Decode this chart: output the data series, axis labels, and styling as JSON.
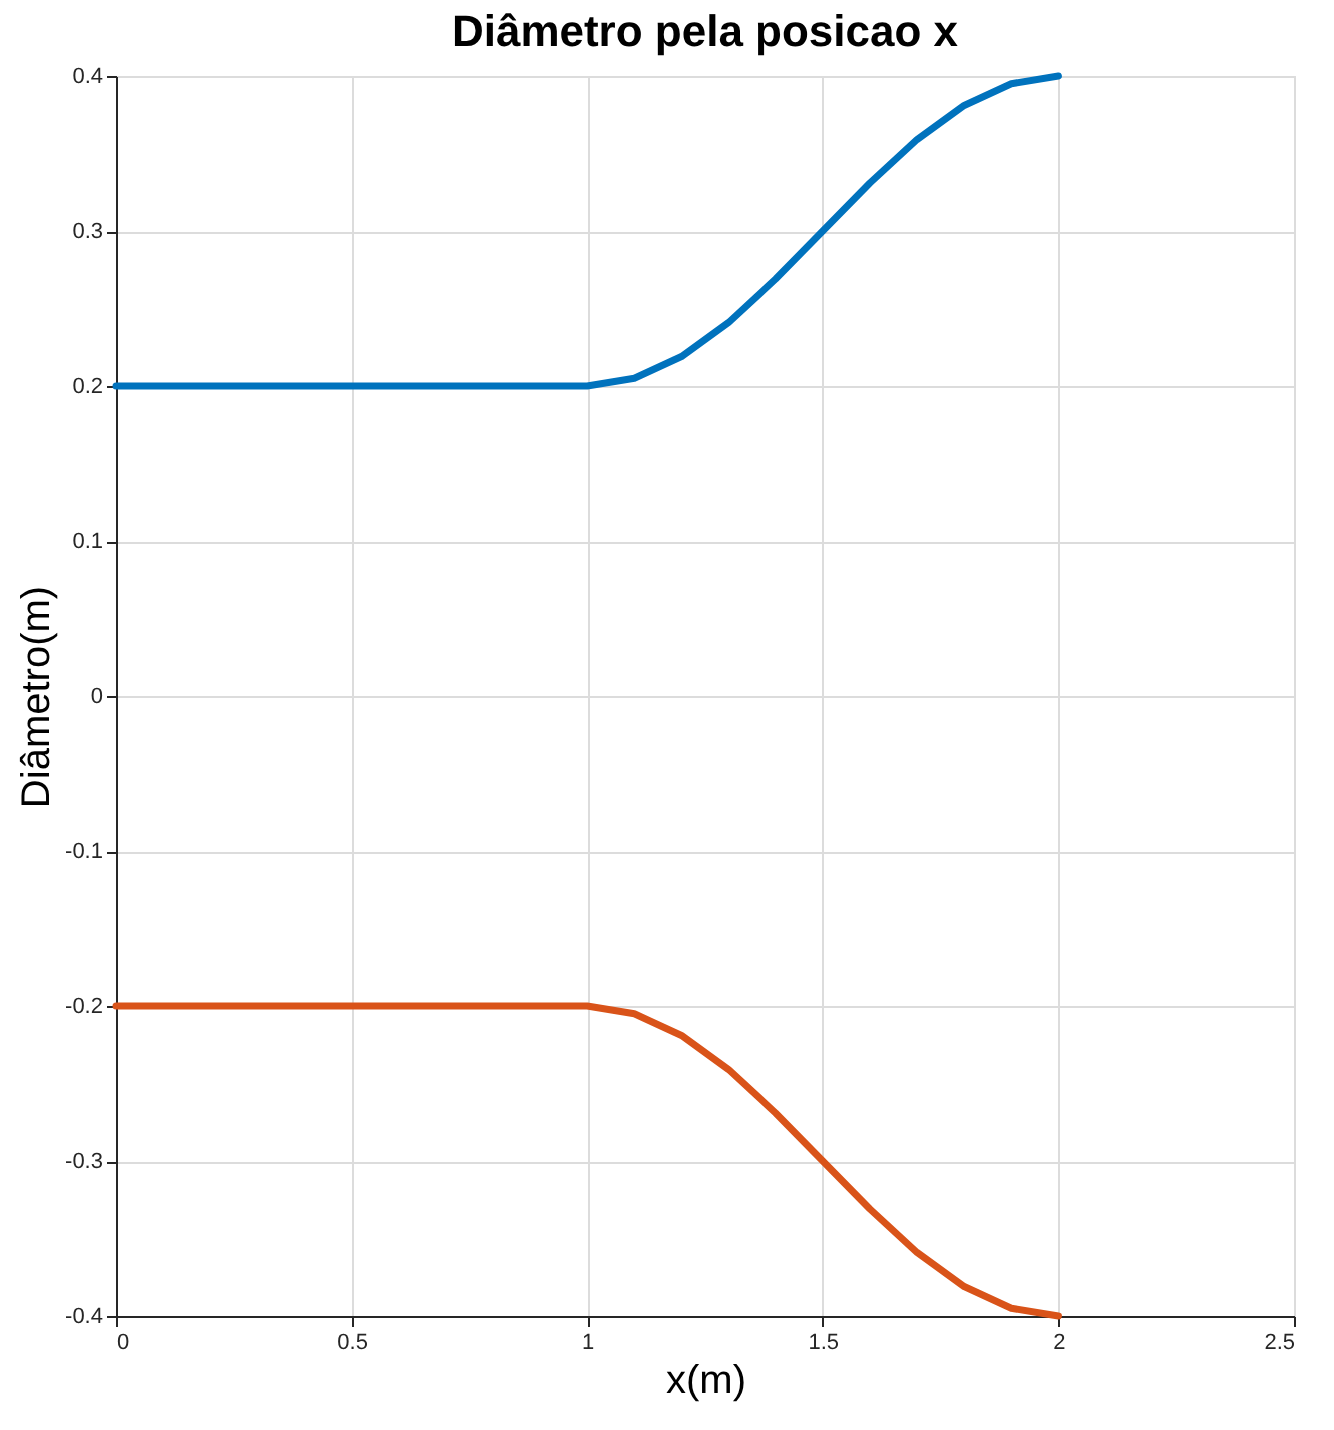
{
  "chart_data": {
    "type": "line",
    "title": "Diâmetro pela posicao x",
    "xlabel": "x(m)",
    "ylabel": "Diâmetro(m)",
    "x": [
      0,
      0.5,
      1,
      1.1,
      1.2,
      1.3,
      1.4,
      1.5,
      1.6,
      1.7,
      1.8,
      1.9,
      2
    ],
    "series": [
      {
        "color": "#0072bd",
        "values": [
          0.2,
          0.2,
          0.2,
          0.205,
          0.219,
          0.241,
          0.269,
          0.3,
          0.331,
          0.359,
          0.381,
          0.395,
          0.4
        ]
      },
      {
        "color": "#d95319",
        "values": [
          -0.2,
          -0.2,
          -0.2,
          -0.205,
          -0.219,
          -0.241,
          -0.269,
          -0.3,
          -0.331,
          -0.359,
          -0.381,
          -0.395,
          -0.4
        ]
      }
    ],
    "xlim": [
      0,
      2.5
    ],
    "xticks": [
      0,
      0.5,
      1,
      1.5,
      2,
      2.5
    ],
    "ylim": [
      -0.4,
      0.4
    ],
    "yticks": [
      -0.4,
      -0.3,
      -0.2,
      -0.1,
      0,
      0.1,
      0.2,
      0.3,
      0.4
    ],
    "grid": true,
    "line_style": "solid",
    "marker": "none"
  }
}
